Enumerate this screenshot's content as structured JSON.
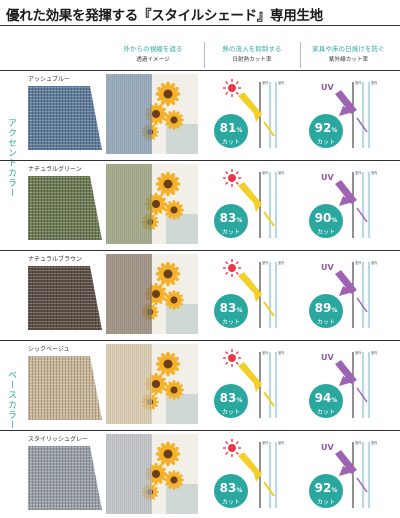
{
  "title": "優れた効果を発揮する『スタイルシェード』専用生地",
  "columns": [
    {
      "heading": "外からの視線を遮る",
      "sub": "透過イメージ"
    },
    {
      "heading": "熱の流入を抑制する",
      "sub": "日射熱カット率"
    },
    {
      "heading": "家具や床の日焼けを防ぐ",
      "sub": "紫外線カット率"
    }
  ],
  "groups": [
    {
      "label": "アクセントカラー"
    },
    {
      "label": "ベースカラー"
    }
  ],
  "panel_labels": {
    "outdoor": "室外",
    "indoor": "室内",
    "uv": "UV",
    "cut": "カット",
    "percent": "%"
  },
  "rows": [
    {
      "name": "アッシュブルー",
      "heat_cut": "81",
      "uv_cut": "92",
      "swatch_color": "#5e7b9c",
      "tint": "#7d98b4"
    },
    {
      "name": "ナチュラルグリーン",
      "heat_cut": "83",
      "uv_cut": "90",
      "swatch_color": "#6b7a52",
      "tint": "#8f9970"
    },
    {
      "name": "ナチュラルブラウン",
      "heat_cut": "83",
      "uv_cut": "89",
      "swatch_color": "#5b4e45",
      "tint": "#8a7a6c"
    },
    {
      "name": "シックベージュ",
      "heat_cut": "83",
      "uv_cut": "94",
      "swatch_color": "#c9b699",
      "tint": "#d8c6a6"
    },
    {
      "name": "スタイリッシュグレー",
      "heat_cut": "83",
      "uv_cut": "92",
      "swatch_color": "#9aa0a8",
      "tint": "#b7bcc2"
    }
  ],
  "colors": {
    "accent": "#2aa8a0",
    "heat_arrow": "#f2d028",
    "sun": "#e8394a",
    "uv_arrow": "#9e64b3",
    "uv_text": "#8e5aa8"
  },
  "icons": [
    "sun-icon",
    "uv-arrow-icon",
    "heat-arrow-icon",
    "sunflower-icon",
    "window-frame-icon"
  ]
}
